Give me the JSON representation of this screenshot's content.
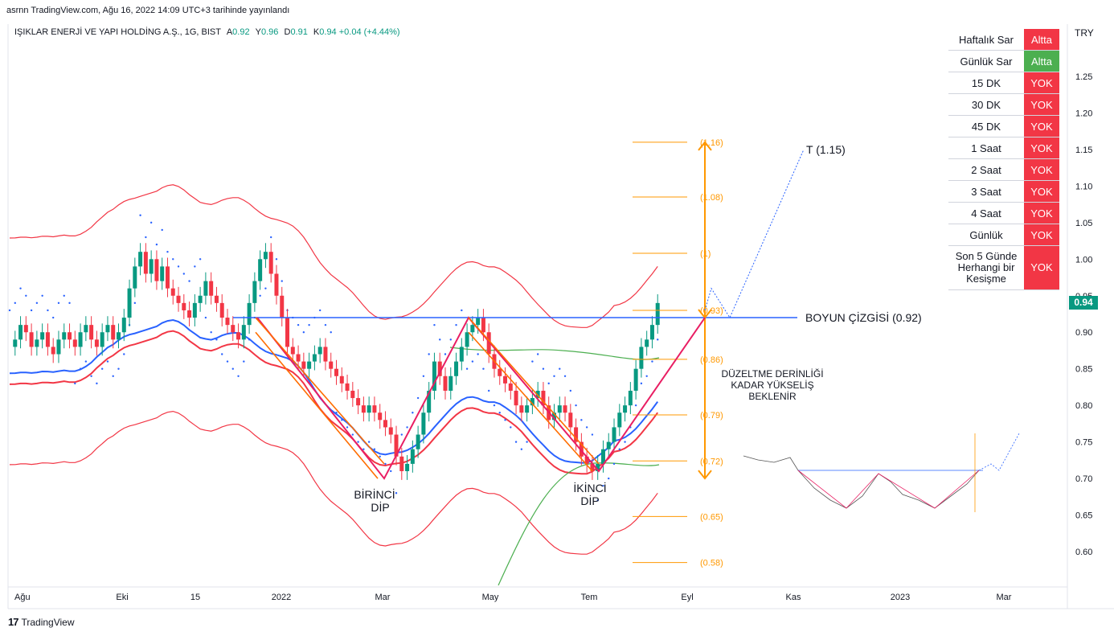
{
  "header": {
    "published": "asrnn TradingView.com, Ağu 16, 2022 14:09 UTC+3 tarihinde yayınlandı",
    "symbol": "IŞIKLAR ENERJİ VE YAPI HOLDİNG A.Ş., 1G, BIST",
    "open_label": "A",
    "open": "0.92",
    "high_label": "Y",
    "high": "0.96",
    "low_label": "D",
    "low": "0.91",
    "close_label": "K",
    "close": "0.94",
    "change": "+0.04 (+4.44%)"
  },
  "axis": {
    "currency": "TRY",
    "last_price": "0.94"
  },
  "footer": {
    "brand": "TradingView",
    "logo": "17"
  },
  "status_table": [
    {
      "label": "Haftalık Sar",
      "value": "Altta",
      "color": "#f23645"
    },
    {
      "label": "Günlük Sar",
      "value": "Altta",
      "color": "#4caf50"
    },
    {
      "label": "15 DK",
      "value": "YOK",
      "color": "#f23645"
    },
    {
      "label": "30 DK",
      "value": "YOK",
      "color": "#f23645"
    },
    {
      "label": "45 DK",
      "value": "YOK",
      "color": "#f23645"
    },
    {
      "label": "1 Saat",
      "value": "YOK",
      "color": "#f23645"
    },
    {
      "label": "2 Saat",
      "value": "YOK",
      "color": "#f23645"
    },
    {
      "label": "3 Saat",
      "value": "YOK",
      "color": "#f23645"
    },
    {
      "label": "4 Saat",
      "value": "YOK",
      "color": "#f23645"
    },
    {
      "label": "Günlük",
      "value": "YOK",
      "color": "#f23645"
    },
    {
      "label": "Son 5 Günde Herhangi bir Kesişme",
      "value": "YOK",
      "color": "#f23645"
    }
  ],
  "chart_data": {
    "type": "candlestick",
    "x_ticks": [
      "Ağu",
      "Eki",
      "15",
      "2022",
      "Mar",
      "May",
      "Tem",
      "Eyl",
      "Kas",
      "2023",
      "Mar"
    ],
    "y_ticks": [
      "1.25",
      "1.20",
      "1.15",
      "1.10",
      "1.05",
      "1.00",
      "0.95",
      "0.90",
      "0.85",
      "0.80",
      "0.75",
      "0.70",
      "0.65",
      "0.60"
    ],
    "ylim": [
      0.555,
      1.315
    ],
    "price_series": [
      [
        0.88,
        0.0
      ],
      [
        0.89,
        0.5
      ],
      [
        0.91,
        1
      ],
      [
        0.9,
        1.5
      ],
      [
        0.88,
        2
      ],
      [
        0.89,
        2.5
      ],
      [
        0.9,
        3
      ],
      [
        0.88,
        3.5
      ],
      [
        0.87,
        4
      ],
      [
        0.89,
        4.5
      ],
      [
        0.9,
        5
      ],
      [
        0.89,
        5.5
      ],
      [
        0.88,
        6
      ],
      [
        0.9,
        6.5
      ],
      [
        0.91,
        7
      ],
      [
        0.89,
        7.5
      ],
      [
        0.88,
        8
      ],
      [
        0.9,
        8.5
      ],
      [
        0.91,
        9
      ],
      [
        0.89,
        9.5
      ],
      [
        0.9,
        10
      ],
      [
        0.92,
        10.5
      ],
      [
        0.96,
        11
      ],
      [
        0.99,
        11.5
      ],
      [
        1.01,
        12
      ],
      [
        0.98,
        12.5
      ],
      [
        1.0,
        13
      ],
      [
        0.97,
        13.5
      ],
      [
        0.99,
        14
      ],
      [
        0.96,
        14.5
      ],
      [
        0.95,
        15
      ],
      [
        0.94,
        15.5
      ],
      [
        0.93,
        16
      ],
      [
        0.92,
        16.5
      ],
      [
        0.94,
        17
      ],
      [
        0.95,
        17.5
      ],
      [
        0.97,
        18
      ],
      [
        0.95,
        18.5
      ],
      [
        0.94,
        19
      ],
      [
        0.92,
        19.5
      ],
      [
        0.91,
        20
      ],
      [
        0.9,
        20.5
      ],
      [
        0.89,
        21
      ],
      [
        0.91,
        21.5
      ],
      [
        0.94,
        22
      ],
      [
        0.97,
        22.5
      ],
      [
        1.0,
        23
      ],
      [
        1.01,
        23.5
      ],
      [
        0.98,
        24
      ],
      [
        0.95,
        24.5
      ],
      [
        0.92,
        25
      ],
      [
        0.88,
        25.5
      ],
      [
        0.87,
        26
      ],
      [
        0.86,
        26.5
      ],
      [
        0.85,
        27
      ],
      [
        0.86,
        27.5
      ],
      [
        0.87,
        28
      ],
      [
        0.88,
        28.5
      ],
      [
        0.86,
        29
      ],
      [
        0.85,
        29.5
      ],
      [
        0.84,
        30
      ],
      [
        0.83,
        30.5
      ],
      [
        0.82,
        31
      ],
      [
        0.81,
        31.5
      ],
      [
        0.8,
        32
      ],
      [
        0.79,
        32.5
      ],
      [
        0.8,
        33
      ],
      [
        0.79,
        33.5
      ],
      [
        0.78,
        34
      ],
      [
        0.77,
        34.5
      ],
      [
        0.76,
        35
      ],
      [
        0.73,
        35.5
      ],
      [
        0.71,
        36
      ],
      [
        0.72,
        36.5
      ],
      [
        0.74,
        37
      ],
      [
        0.76,
        37.5
      ],
      [
        0.79,
        38
      ],
      [
        0.82,
        38.5
      ],
      [
        0.86,
        39
      ],
      [
        0.84,
        39.5
      ],
      [
        0.82,
        40
      ],
      [
        0.84,
        40.5
      ],
      [
        0.86,
        41
      ],
      [
        0.88,
        41.5
      ],
      [
        0.9,
        42
      ],
      [
        0.91,
        42.5
      ],
      [
        0.92,
        43
      ],
      [
        0.9,
        43.5
      ],
      [
        0.87,
        44
      ],
      [
        0.85,
        44.5
      ],
      [
        0.84,
        45
      ],
      [
        0.83,
        45.5
      ],
      [
        0.82,
        46
      ],
      [
        0.8,
        46.5
      ],
      [
        0.79,
        47
      ],
      [
        0.8,
        47.5
      ],
      [
        0.81,
        48
      ],
      [
        0.82,
        48.5
      ],
      [
        0.8,
        49
      ],
      [
        0.78,
        49.5
      ],
      [
        0.79,
        50
      ],
      [
        0.8,
        50.5
      ],
      [
        0.79,
        51
      ],
      [
        0.77,
        51.5
      ],
      [
        0.75,
        52
      ],
      [
        0.73,
        52.5
      ],
      [
        0.72,
        53
      ],
      [
        0.71,
        53.5
      ],
      [
        0.72,
        54
      ],
      [
        0.74,
        54.5
      ],
      [
        0.75,
        55
      ],
      [
        0.77,
        55.5
      ],
      [
        0.79,
        56
      ],
      [
        0.8,
        56.5
      ],
      [
        0.82,
        57
      ],
      [
        0.85,
        57.5
      ],
      [
        0.88,
        58
      ],
      [
        0.89,
        58.5
      ],
      [
        0.91,
        59
      ],
      [
        0.94,
        59.5
      ]
    ],
    "neckline": {
      "label": "BOYUN ÇİZGİSİ (0.92)",
      "value": 0.92
    },
    "target": {
      "label": "T (1.15)",
      "value": 1.15
    },
    "fib_levels": [
      {
        "label": "(1.16)",
        "value": 1.16
      },
      {
        "label": "(1.08)",
        "value": 1.085
      },
      {
        "label": "(1)",
        "value": 1.008
      },
      {
        "label": "(0.93)",
        "value": 0.93
      },
      {
        "label": "(0.86)",
        "value": 0.863
      },
      {
        "label": "(0.79)",
        "value": 0.787
      },
      {
        "label": "(0.72)",
        "value": 0.724
      },
      {
        "label": "(0.65)",
        "value": 0.648
      },
      {
        "label": "(0.58)",
        "value": 0.585
      }
    ],
    "annotations": {
      "first_dip": [
        "BİRİNCİ",
        "DİP"
      ],
      "second_dip": [
        "İKİNCİ",
        "DİP"
      ],
      "projection": [
        "DÜZELTME DERİNLİĞİ",
        "KADAR YÜKSELİŞ",
        "BEKLENİR"
      ]
    },
    "colors": {
      "up": "#089981",
      "down": "#f23645",
      "neckline": "#2962ff",
      "fib": "#ff9800",
      "channel": "#f23645",
      "ma_blue": "#2962ff",
      "ma_green": "#4caf50",
      "pattern": "#e91e63",
      "wedge": "#ff6d00"
    }
  }
}
